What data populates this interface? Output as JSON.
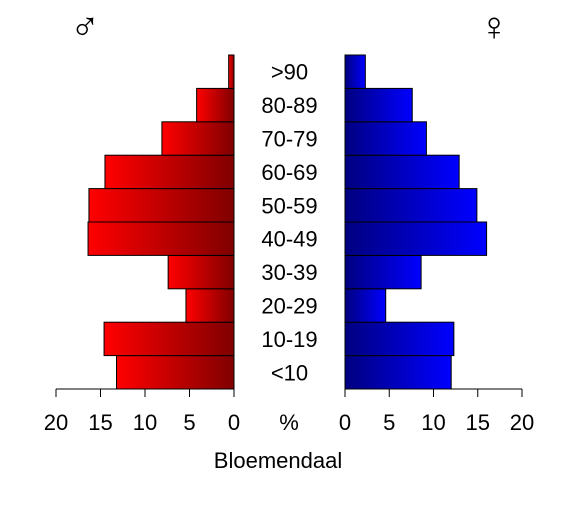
{
  "chart_data": {
    "type": "bar",
    "orientation": "horizontal-pyramid",
    "categories": [
      "<10",
      "10-19",
      "20-29",
      "30-39",
      "40-49",
      "50-59",
      "60-69",
      "70-79",
      "80-89",
      ">90"
    ],
    "series": [
      {
        "name": "♂",
        "side": "left",
        "color_start": "#ff0000",
        "color_end": "#800000",
        "values": [
          13.2,
          14.6,
          5.4,
          7.4,
          16.4,
          16.3,
          14.5,
          8.1,
          4.2,
          0.6
        ]
      },
      {
        "name": "♀",
        "side": "right",
        "color_start": "#000080",
        "color_end": "#0000ff",
        "values": [
          12.0,
          12.3,
          4.6,
          8.6,
          16.0,
          14.9,
          12.9,
          9.2,
          7.6,
          2.3
        ]
      }
    ],
    "xlim": [
      0,
      20
    ],
    "left_ticks": [
      "20",
      "15",
      "10",
      "5",
      "0"
    ],
    "right_ticks": [
      "0",
      "5",
      "10",
      "15",
      "20"
    ],
    "tick_values": [
      20,
      15,
      10,
      5,
      0
    ],
    "unit_label": "%",
    "xlabel": "Bloemendaal",
    "male_symbol": "♂",
    "female_symbol": "♀",
    "grid": false
  }
}
